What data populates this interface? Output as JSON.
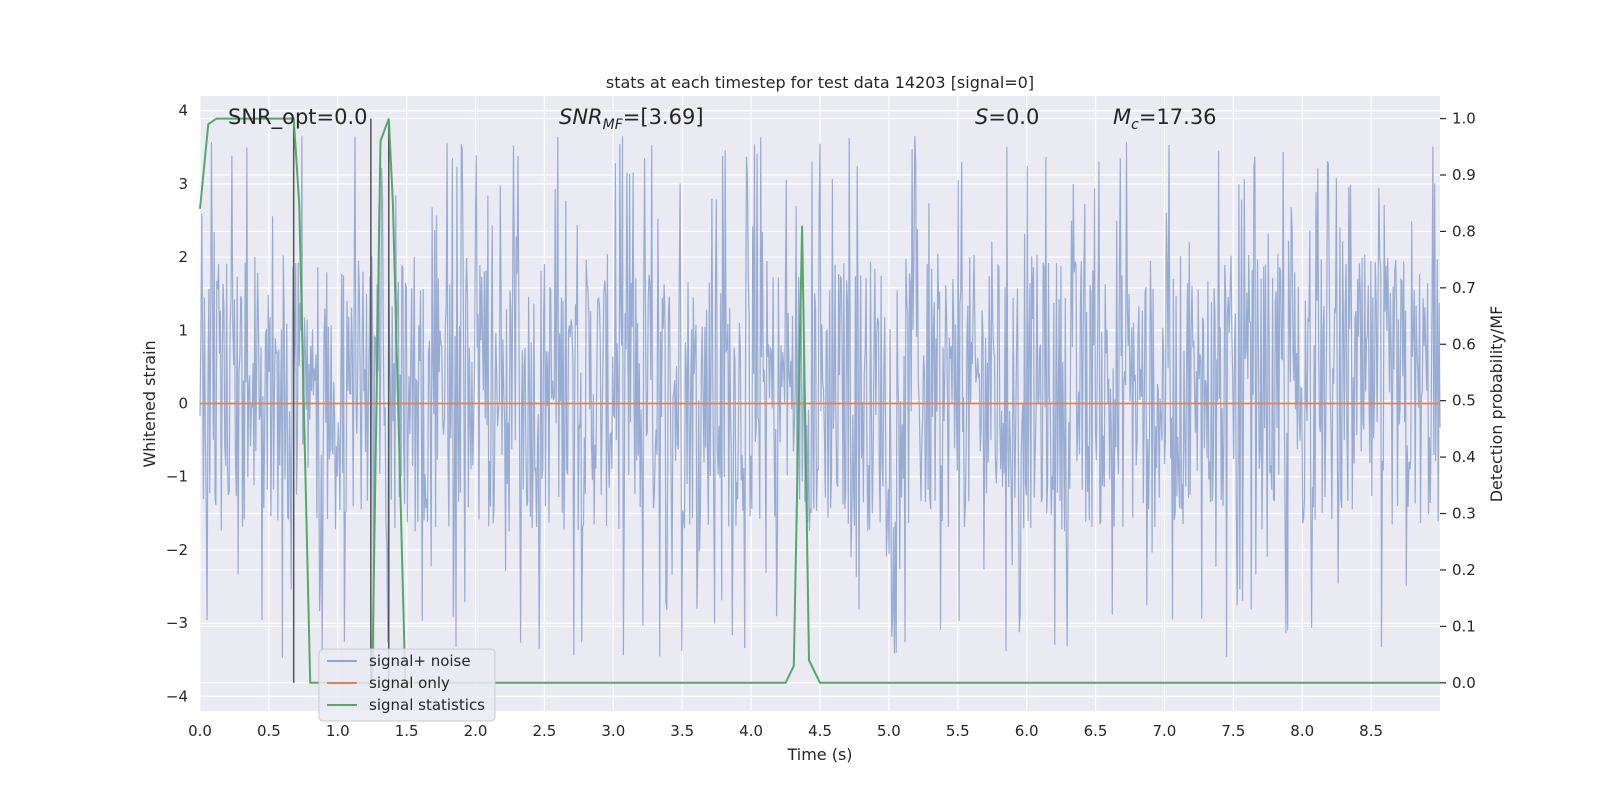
{
  "chart_data": {
    "type": "line",
    "title": "stats at each timestep for test data 14203 [signal=0]",
    "xlabel": "Time (s)",
    "ylabel": "Whitened strain",
    "y2label": "Detection probability/MF",
    "xlim": [
      0.0,
      9.0
    ],
    "ylim": [
      -4.2,
      4.2
    ],
    "y2lim": [
      -0.05,
      1.04
    ],
    "grid": true,
    "legend_position": "lower-left",
    "x_ticks": [
      "0.0",
      "0.5",
      "1.0",
      "1.5",
      "2.0",
      "2.5",
      "3.0",
      "3.5",
      "4.0",
      "4.5",
      "5.0",
      "5.5",
      "6.0",
      "6.5",
      "7.0",
      "7.5",
      "8.0",
      "8.5"
    ],
    "y_ticks": [
      "−4",
      "−3",
      "−2",
      "−1",
      "0",
      "1",
      "2",
      "3",
      "4"
    ],
    "y2_ticks": [
      "0.0",
      "0.1",
      "0.2",
      "0.3",
      "0.4",
      "0.5",
      "0.6",
      "0.7",
      "0.8",
      "0.9",
      "1.0"
    ],
    "annotations": {
      "snr_opt": "SNR_opt=0.0",
      "snr_mf_main": "SNR",
      "snr_mf_sub": "MF",
      "snr_mf_rest": "=[3.69]",
      "s_main": "S",
      "s_rest": "=0.0",
      "mc_main": "M",
      "mc_sub": "c",
      "mc_rest": "=17.36"
    },
    "series": [
      {
        "name": "signal+ noise",
        "color": "#8fa4cf",
        "axis": "left",
        "description_values": "whitened noise, roughly within [-2, 2.5] with spikes to about ±3.8"
      },
      {
        "name": "signal only",
        "color": "#dd8452",
        "axis": "left",
        "x": [
          0.0,
          9.0
        ],
        "y": [
          0.0,
          0.0
        ]
      },
      {
        "name": "signal statistics",
        "color": "#55a868",
        "axis": "right",
        "x": [
          0.0,
          0.06,
          0.12,
          0.5,
          0.68,
          0.72,
          0.8,
          1.25,
          1.31,
          1.37,
          1.4,
          1.49,
          2.0,
          4.25,
          4.31,
          4.37,
          4.42,
          4.5,
          9.0
        ],
        "y": [
          0.84,
          0.99,
          1.0,
          1.0,
          1.0,
          0.85,
          0.0,
          0.0,
          0.96,
          1.0,
          0.85,
          0.0,
          0.0,
          0.0,
          0.03,
          0.81,
          0.04,
          0.0,
          0.0
        ]
      }
    ],
    "vertical_markers": [
      {
        "x": 0.68,
        "color": "#555555"
      },
      {
        "x": 1.24,
        "color": "#555555"
      },
      {
        "x": 1.37,
        "color": "#555555"
      }
    ]
  }
}
